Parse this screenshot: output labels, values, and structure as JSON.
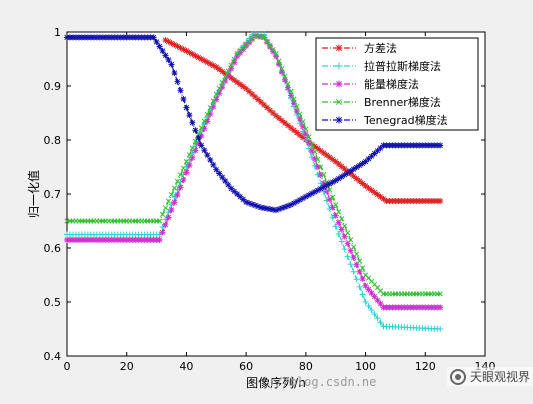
{
  "chart_data": {
    "type": "line",
    "title": "",
    "xlabel": "图像序列/n",
    "ylabel": "归一化值",
    "xlim": [
      0,
      140
    ],
    "ylim": [
      0.4,
      1.0
    ],
    "xticks": [
      0,
      20,
      40,
      60,
      80,
      100,
      120,
      140
    ],
    "yticks": [
      0.4,
      0.5,
      0.6,
      0.7,
      0.8,
      0.9,
      1.0
    ],
    "grid": false,
    "legend_position": "top-right",
    "series": [
      {
        "name": "方差法",
        "color": "#e02020",
        "marker": "star",
        "points": [
          [
            33,
            0.985
          ],
          [
            40,
            0.965
          ],
          [
            50,
            0.935
          ],
          [
            60,
            0.895
          ],
          [
            65,
            0.87
          ],
          [
            70,
            0.845
          ],
          [
            80,
            0.8
          ],
          [
            90,
            0.76
          ],
          [
            100,
            0.715
          ],
          [
            107,
            0.687
          ],
          [
            125,
            0.687
          ]
        ]
      },
      {
        "name": "拉普拉斯梯度法",
        "color": "#30d0d8",
        "marker": "plus",
        "points": [
          [
            0,
            0.625
          ],
          [
            31,
            0.625
          ],
          [
            40,
            0.75
          ],
          [
            50,
            0.88
          ],
          [
            57,
            0.96
          ],
          [
            62,
            0.995
          ],
          [
            66,
            0.995
          ],
          [
            70,
            0.955
          ],
          [
            80,
            0.8
          ],
          [
            90,
            0.64
          ],
          [
            100,
            0.5
          ],
          [
            106,
            0.455
          ],
          [
            125,
            0.45
          ]
        ]
      },
      {
        "name": "能量梯度法",
        "color": "#d030d0",
        "marker": "star",
        "points": [
          [
            0,
            0.615
          ],
          [
            31,
            0.615
          ],
          [
            40,
            0.74
          ],
          [
            50,
            0.875
          ],
          [
            57,
            0.955
          ],
          [
            63,
            0.993
          ],
          [
            66,
            0.99
          ],
          [
            70,
            0.955
          ],
          [
            80,
            0.81
          ],
          [
            90,
            0.66
          ],
          [
            100,
            0.53
          ],
          [
            106,
            0.49
          ],
          [
            125,
            0.49
          ]
        ]
      },
      {
        "name": "Brenner梯度法",
        "color": "#30c030",
        "marker": "x",
        "points": [
          [
            0,
            0.65
          ],
          [
            31,
            0.65
          ],
          [
            40,
            0.76
          ],
          [
            50,
            0.885
          ],
          [
            57,
            0.96
          ],
          [
            63,
            0.993
          ],
          [
            66,
            0.99
          ],
          [
            70,
            0.96
          ],
          [
            80,
            0.82
          ],
          [
            90,
            0.68
          ],
          [
            100,
            0.55
          ],
          [
            106,
            0.515
          ],
          [
            125,
            0.515
          ]
        ]
      },
      {
        "name": "Tenegrad梯度法",
        "color": "#1010b0",
        "marker": "star",
        "points": [
          [
            0,
            0.99
          ],
          [
            29,
            0.99
          ],
          [
            35,
            0.94
          ],
          [
            40,
            0.86
          ],
          [
            45,
            0.79
          ],
          [
            50,
            0.745
          ],
          [
            55,
            0.71
          ],
          [
            60,
            0.685
          ],
          [
            65,
            0.675
          ],
          [
            70,
            0.67
          ],
          [
            75,
            0.68
          ],
          [
            80,
            0.695
          ],
          [
            90,
            0.725
          ],
          [
            100,
            0.76
          ],
          [
            106,
            0.79
          ],
          [
            125,
            0.79
          ]
        ]
      }
    ]
  },
  "watermark": "://blog.csdn.ne",
  "logo_text": "天眼观视界"
}
